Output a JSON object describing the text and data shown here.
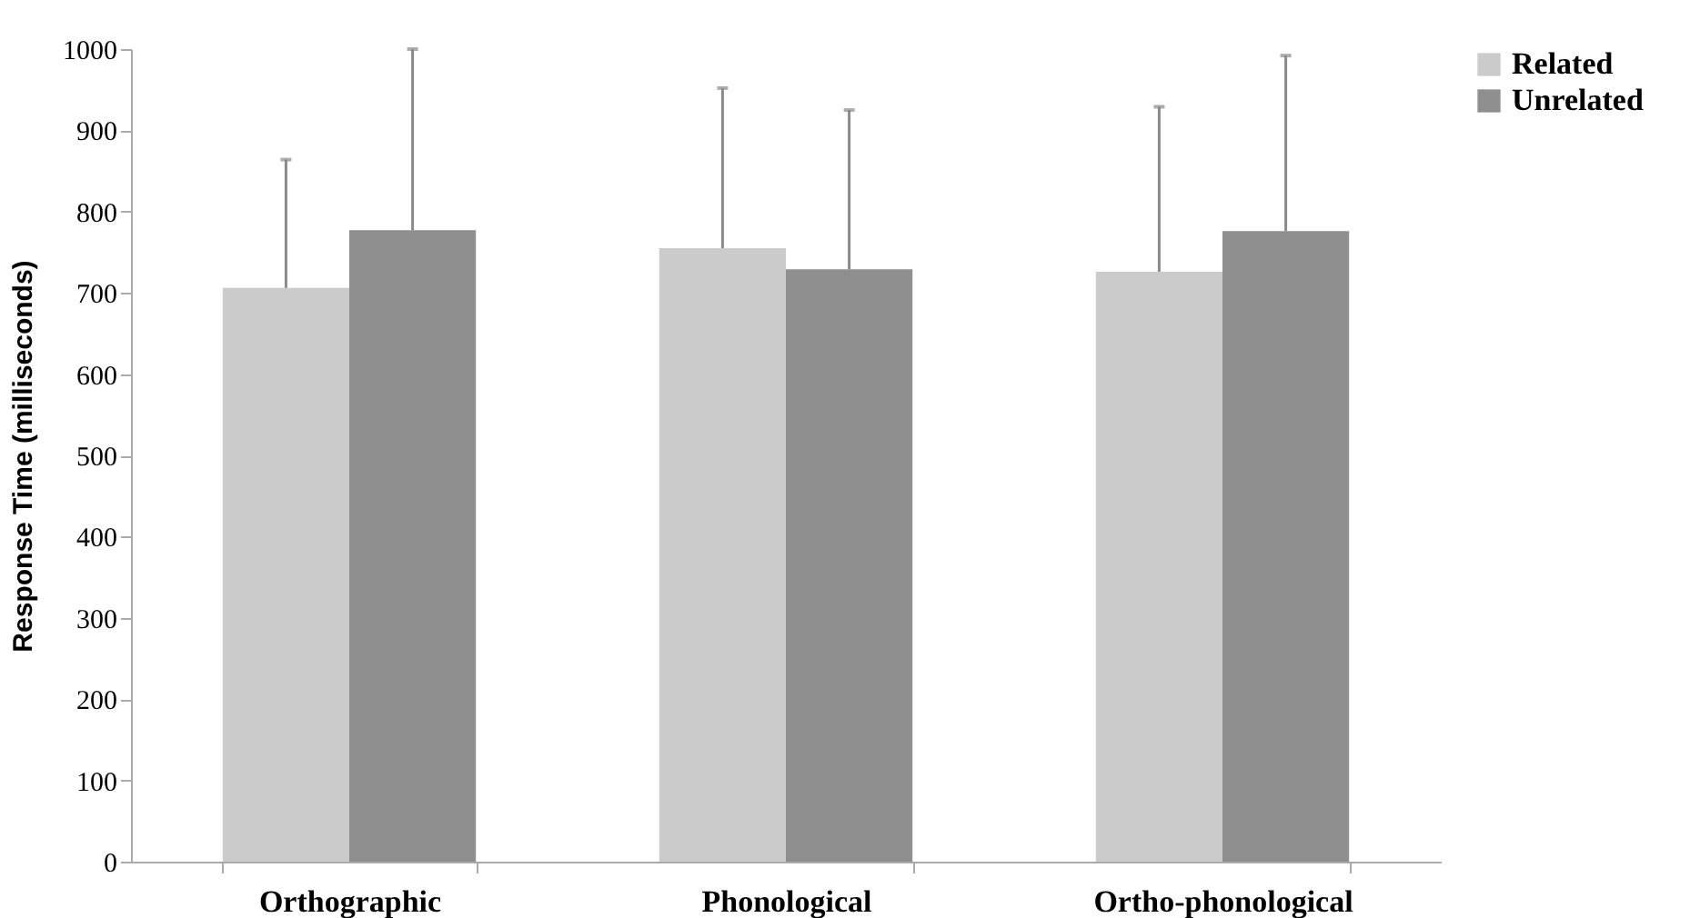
{
  "chart_data": {
    "type": "bar",
    "ylabel": "Response Time (milliseconds)",
    "categories": [
      "Orthographic",
      "Phonological",
      "Ortho-phonological"
    ],
    "series": [
      {
        "name": "Related",
        "color": "#cbcbcb",
        "values": [
          706,
          755,
          726
        ],
        "errors": [
          [
            706,
            864
          ],
          [
            755,
            952
          ],
          [
            726,
            929
          ]
        ]
      },
      {
        "name": "Unrelated",
        "color": "#8f8f8f",
        "values": [
          777,
          729,
          776
        ],
        "errors": [
          [
            777,
            1000
          ],
          [
            729,
            925
          ],
          [
            776,
            992
          ]
        ]
      }
    ],
    "ylim": [
      0,
      1000
    ],
    "yticks": [
      0,
      100,
      200,
      300,
      400,
      500,
      600,
      700,
      800,
      900,
      1000
    ],
    "grid": false,
    "legend": "right"
  }
}
